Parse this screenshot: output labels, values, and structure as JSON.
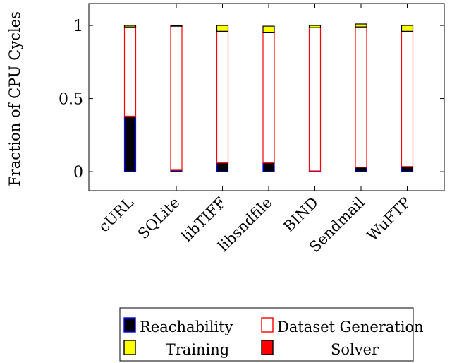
{
  "chart_data": {
    "type": "bar",
    "stacked": true,
    "ylabel": "Fraction of CPU Cycles",
    "xlabel": "",
    "ylim": [
      -0.13,
      1.15
    ],
    "yticks": [
      0,
      0.5,
      1
    ],
    "ytick_labels": [
      "0",
      "0.5",
      "1"
    ],
    "categories": [
      "cURL",
      "SQLite",
      "libTIFF",
      "libsndfile",
      "BIND",
      "Sendmail",
      "WuFTP"
    ],
    "series": [
      {
        "name": "Reachability",
        "color": "#000000",
        "edge": "#0000ff",
        "values": [
          0.38,
          0.01,
          0.06,
          0.06,
          0.005,
          0.03,
          0.035
        ]
      },
      {
        "name": "Dataset Generation",
        "color": "#ffffff",
        "edge": "#ff0000",
        "values": [
          0.61,
          0.985,
          0.9,
          0.89,
          0.98,
          0.96,
          0.925
        ]
      },
      {
        "name": "Training",
        "color": "#ffff00",
        "edge": "#000000",
        "values": [
          0.01,
          0.005,
          0.04,
          0.045,
          0.015,
          0.02,
          0.04
        ]
      },
      {
        "name": "Solver",
        "color": "#ff0000",
        "edge": "#000000",
        "values": [
          0,
          0,
          0,
          0,
          0,
          0,
          0
        ]
      }
    ],
    "legend_position": "bottom",
    "grid": false
  }
}
